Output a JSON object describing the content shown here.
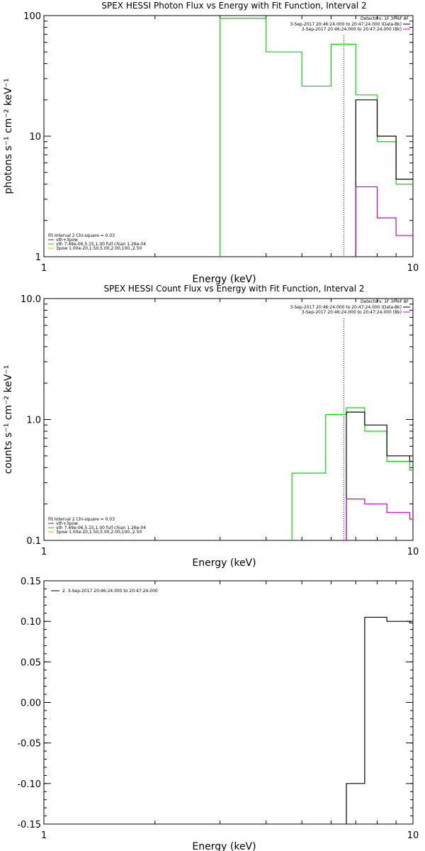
{
  "chart_data": [
    {
      "type": "line",
      "title": "SPEX HESSI Photon Flux vs Energy with Fit Function, Interval 2",
      "xlabel": "Energy (keV)",
      "ylabel": "photons s⁻¹ cm⁻² keV⁻¹",
      "xscale": "log",
      "yscale": "log",
      "xlim": [
        1,
        10
      ],
      "ylim": [
        1,
        100
      ],
      "xticks": [
        "1",
        "10"
      ],
      "yticks": [
        {
          "v": 1,
          "label": "1"
        },
        {
          "v": 10,
          "label": "10"
        },
        {
          "v": 100,
          "label": "100"
        }
      ],
      "fit_start": 6.5,
      "legend_top": {
        "header": "Detectors: 1F 3F 6F 8F",
        "lines": [
          {
            "text": "3-Sep-2017 20:46:24.000 to 20:47:24.000 (Data-Bk)",
            "color": "#000000"
          },
          {
            "text": "3-Sep-2017 20:46:24.000 to 20:47:24.000 (Bk)",
            "color": "#cc00cc"
          }
        ]
      },
      "legend_bottom": [
        {
          "text": "Fit Interval 2   Chi-square = 0.03",
          "color": ""
        },
        {
          "text": "vth+3pow",
          "color": "#cc0033"
        },
        {
          "text": "vth 7.49e-06,5.15,1.00  full chian 1.26e-04",
          "color": "#00dd00"
        },
        {
          "text": "3pow 1.00e-20,1.50,5.00,2.00,100.,2.50",
          "color": "#e6a817"
        }
      ],
      "series": [
        {
          "color": "#00dd00",
          "edges": [
            3.0,
            4.0,
            5.0,
            6.0,
            7.0,
            8.0,
            9.0,
            10.0
          ],
          "values": [
            95,
            50,
            26,
            58,
            22,
            9,
            4
          ],
          "floor": 1
        },
        {
          "color": "#000000",
          "edges": [
            7.0,
            8.0,
            9.0,
            10.0
          ],
          "values": [
            20,
            10,
            4.4
          ],
          "floor": 1
        },
        {
          "color": "#cc00cc",
          "edges": [
            7.0,
            8.0,
            9.0,
            10.0
          ],
          "values": [
            3.8,
            2.1,
            1.5
          ],
          "floor": 1
        }
      ]
    },
    {
      "type": "line",
      "title": "SPEX HESSI Count Flux vs Energy with Fit Function, Interval 2",
      "xlabel": "Energy (keV)",
      "ylabel": "counts s⁻¹ cm⁻² keV⁻¹",
      "xscale": "log",
      "yscale": "log",
      "xlim": [
        1,
        10
      ],
      "ylim": [
        0.1,
        10
      ],
      "xticks": [
        "1",
        "10"
      ],
      "yticks": [
        {
          "v": 0.1,
          "label": "0.1"
        },
        {
          "v": 1,
          "label": "1.0"
        },
        {
          "v": 10,
          "label": "10.0"
        }
      ],
      "fit_start": 6.5,
      "legend_top": {
        "header": "Detectors: 1F 3F 6F 8F",
        "lines": [
          {
            "text": "3-Sep-2017 20:46:24.000 to 20:47:24.000 (Data-Bk)",
            "color": "#000000"
          },
          {
            "text": "3-Sep-2017 20:46:24.000 to 20:47:24.000 (Bk)",
            "color": "#cc00cc"
          }
        ]
      },
      "legend_bottom": [
        {
          "text": "Fit Interval 2   Chi-square = 0.03",
          "color": ""
        },
        {
          "text": "vth+3pow",
          "color": "#cc0033"
        },
        {
          "text": "vth 7.49e-06,5.15,1.00  full chian 1.26e-04",
          "color": "#00dd00"
        },
        {
          "text": "3pow 1.00e-20,1.50,5.00,2.00,100.,2.50",
          "color": "#e6a817"
        }
      ],
      "series": [
        {
          "color": "#00dd00",
          "edges": [
            4.7,
            5.8,
            6.6,
            7.4,
            8.5,
            9.8,
            10.0
          ],
          "values": [
            0.36,
            1.1,
            1.25,
            0.8,
            0.45,
            0.38
          ],
          "floor": 0.1
        },
        {
          "color": "#000000",
          "edges": [
            6.6,
            7.4,
            8.5,
            9.8,
            10.0
          ],
          "values": [
            1.15,
            0.9,
            0.5,
            0.45
          ],
          "floor": 0.1
        },
        {
          "color": "#cc00cc",
          "edges": [
            6.6,
            7.4,
            8.5,
            9.8,
            10.0
          ],
          "values": [
            0.22,
            0.2,
            0.17,
            0.15
          ],
          "floor": 0.1
        }
      ]
    },
    {
      "type": "line",
      "title": "",
      "xlabel": "Energy (keV)",
      "ylabel": "",
      "xscale": "log",
      "yscale": "linear",
      "xlim": [
        1,
        10
      ],
      "ylim": [
        -0.15,
        0.15
      ],
      "xticks": [
        "1",
        "10"
      ],
      "yticks": [
        {
          "v": 0.15,
          "label": "0.15"
        },
        {
          "v": 0.1,
          "label": "0.10"
        },
        {
          "v": 0.05,
          "label": "0.05"
        },
        {
          "v": 0.0,
          "label": "0.00"
        },
        {
          "v": -0.05,
          "label": "-0.05"
        },
        {
          "v": -0.1,
          "label": "-0.10"
        },
        {
          "v": -0.15,
          "label": "-0.15"
        }
      ],
      "legend_top_left": {
        "text": "2. 3-Sep-2017 20:46:24.000 to 20:47:24.000",
        "color": "#000000"
      },
      "series": [
        {
          "color": "#000000",
          "edges": [
            6.6,
            7.4,
            8.5,
            9.8,
            10.0
          ],
          "values": [
            -0.1,
            0.105,
            0.1,
            0.098
          ],
          "floor": -0.15
        }
      ]
    }
  ]
}
